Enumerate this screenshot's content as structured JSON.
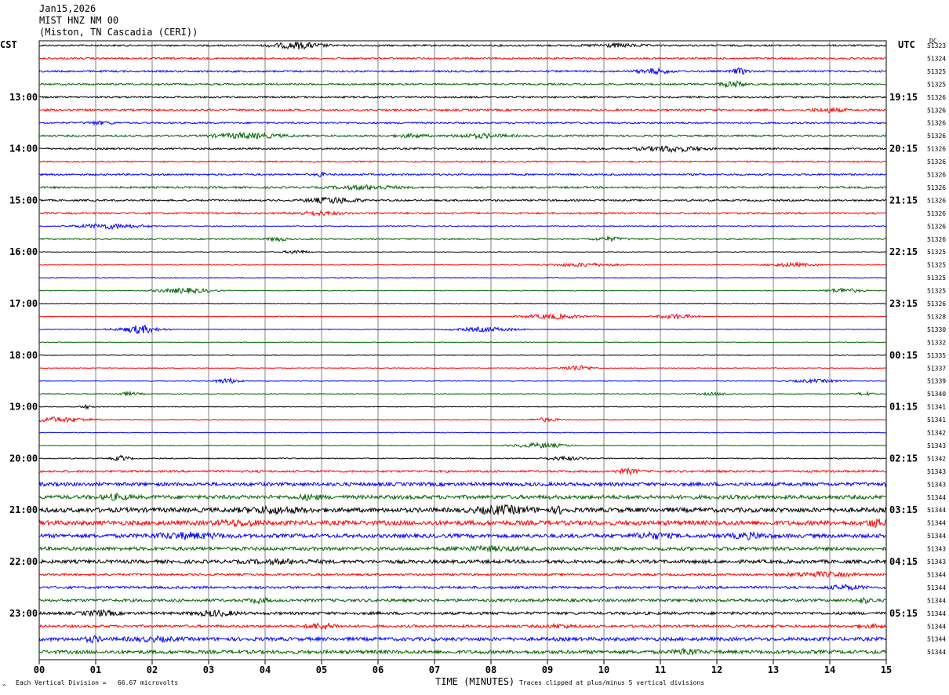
{
  "header": {
    "date": "Jan15,2026",
    "station": "MIST HNZ NM 00",
    "location": "(Miston, TN Cascadia (CERI))"
  },
  "left_tz": "CST",
  "right_tz": "UTC",
  "dc_label": "DC",
  "footer": {
    "scale": "Each Vertical Division =   66.67 microvolts",
    "xaxis_title": "TIME (MINUTES)",
    "clip_note": "Traces clipped at plus/minus 5 vertical divisions",
    "corner_mark": "^"
  },
  "colors": {
    "trace_cycle": [
      "#000000",
      "#ff0000",
      "#0000ff",
      "#006400"
    ],
    "grid": "#808080"
  },
  "chart_data": {
    "type": "line",
    "title": "",
    "xlabel": "TIME (MINUTES)",
    "ylabel": "",
    "x_ticks": [
      "00",
      "01",
      "02",
      "03",
      "04",
      "05",
      "06",
      "07",
      "08",
      "09",
      "10",
      "11",
      "12",
      "13",
      "14",
      "15"
    ],
    "xlim": [
      0,
      15
    ],
    "left_time_labels": [
      "13:00",
      "14:00",
      "15:00",
      "16:00",
      "17:00",
      "18:00",
      "19:00",
      "20:00",
      "21:00",
      "22:00",
      "23:00"
    ],
    "right_time_labels": [
      "19:15",
      "20:15",
      "21:15",
      "22:15",
      "23:15",
      "00:15",
      "01:15",
      "02:15",
      "03:15",
      "04:15",
      "05:15"
    ],
    "dc_offsets": [
      "51323",
      "51324",
      "51325",
      "51325",
      "51326",
      "51326",
      "51326",
      "51326",
      "51326",
      "51326",
      "51326",
      "51326",
      "51326",
      "51326",
      "51326",
      "51326",
      "51325",
      "51325",
      "51325",
      "51325",
      "51326",
      "51328",
      "51330",
      "51332",
      "51335",
      "51337",
      "51339",
      "51340",
      "51341",
      "51341",
      "51342",
      "51343",
      "51342",
      "51343",
      "51343",
      "51344",
      "51344",
      "51344",
      "51344",
      "51343",
      "51343",
      "51344",
      "51344",
      "51344",
      "51344",
      "51344",
      "51344",
      "51344"
    ],
    "trace_noise_level": [
      1,
      1,
      1,
      1,
      1,
      1.2,
      1,
      1,
      1,
      0.8,
      1,
      1.1,
      1,
      1,
      0.6,
      0.7,
      0.4,
      0.4,
      0.4,
      0.4,
      0.4,
      0.4,
      0.4,
      0.4,
      0.4,
      0.4,
      0.4,
      0.4,
      0.4,
      0.4,
      0.4,
      0.4,
      0.6,
      1.2,
      2.0,
      2.2,
      2.6,
      2.6,
      2.2,
      2.0,
      2.0,
      1.2,
      1.4,
      1.6,
      1.6,
      1.4,
      2.0,
      2.0
    ],
    "grid": true
  }
}
